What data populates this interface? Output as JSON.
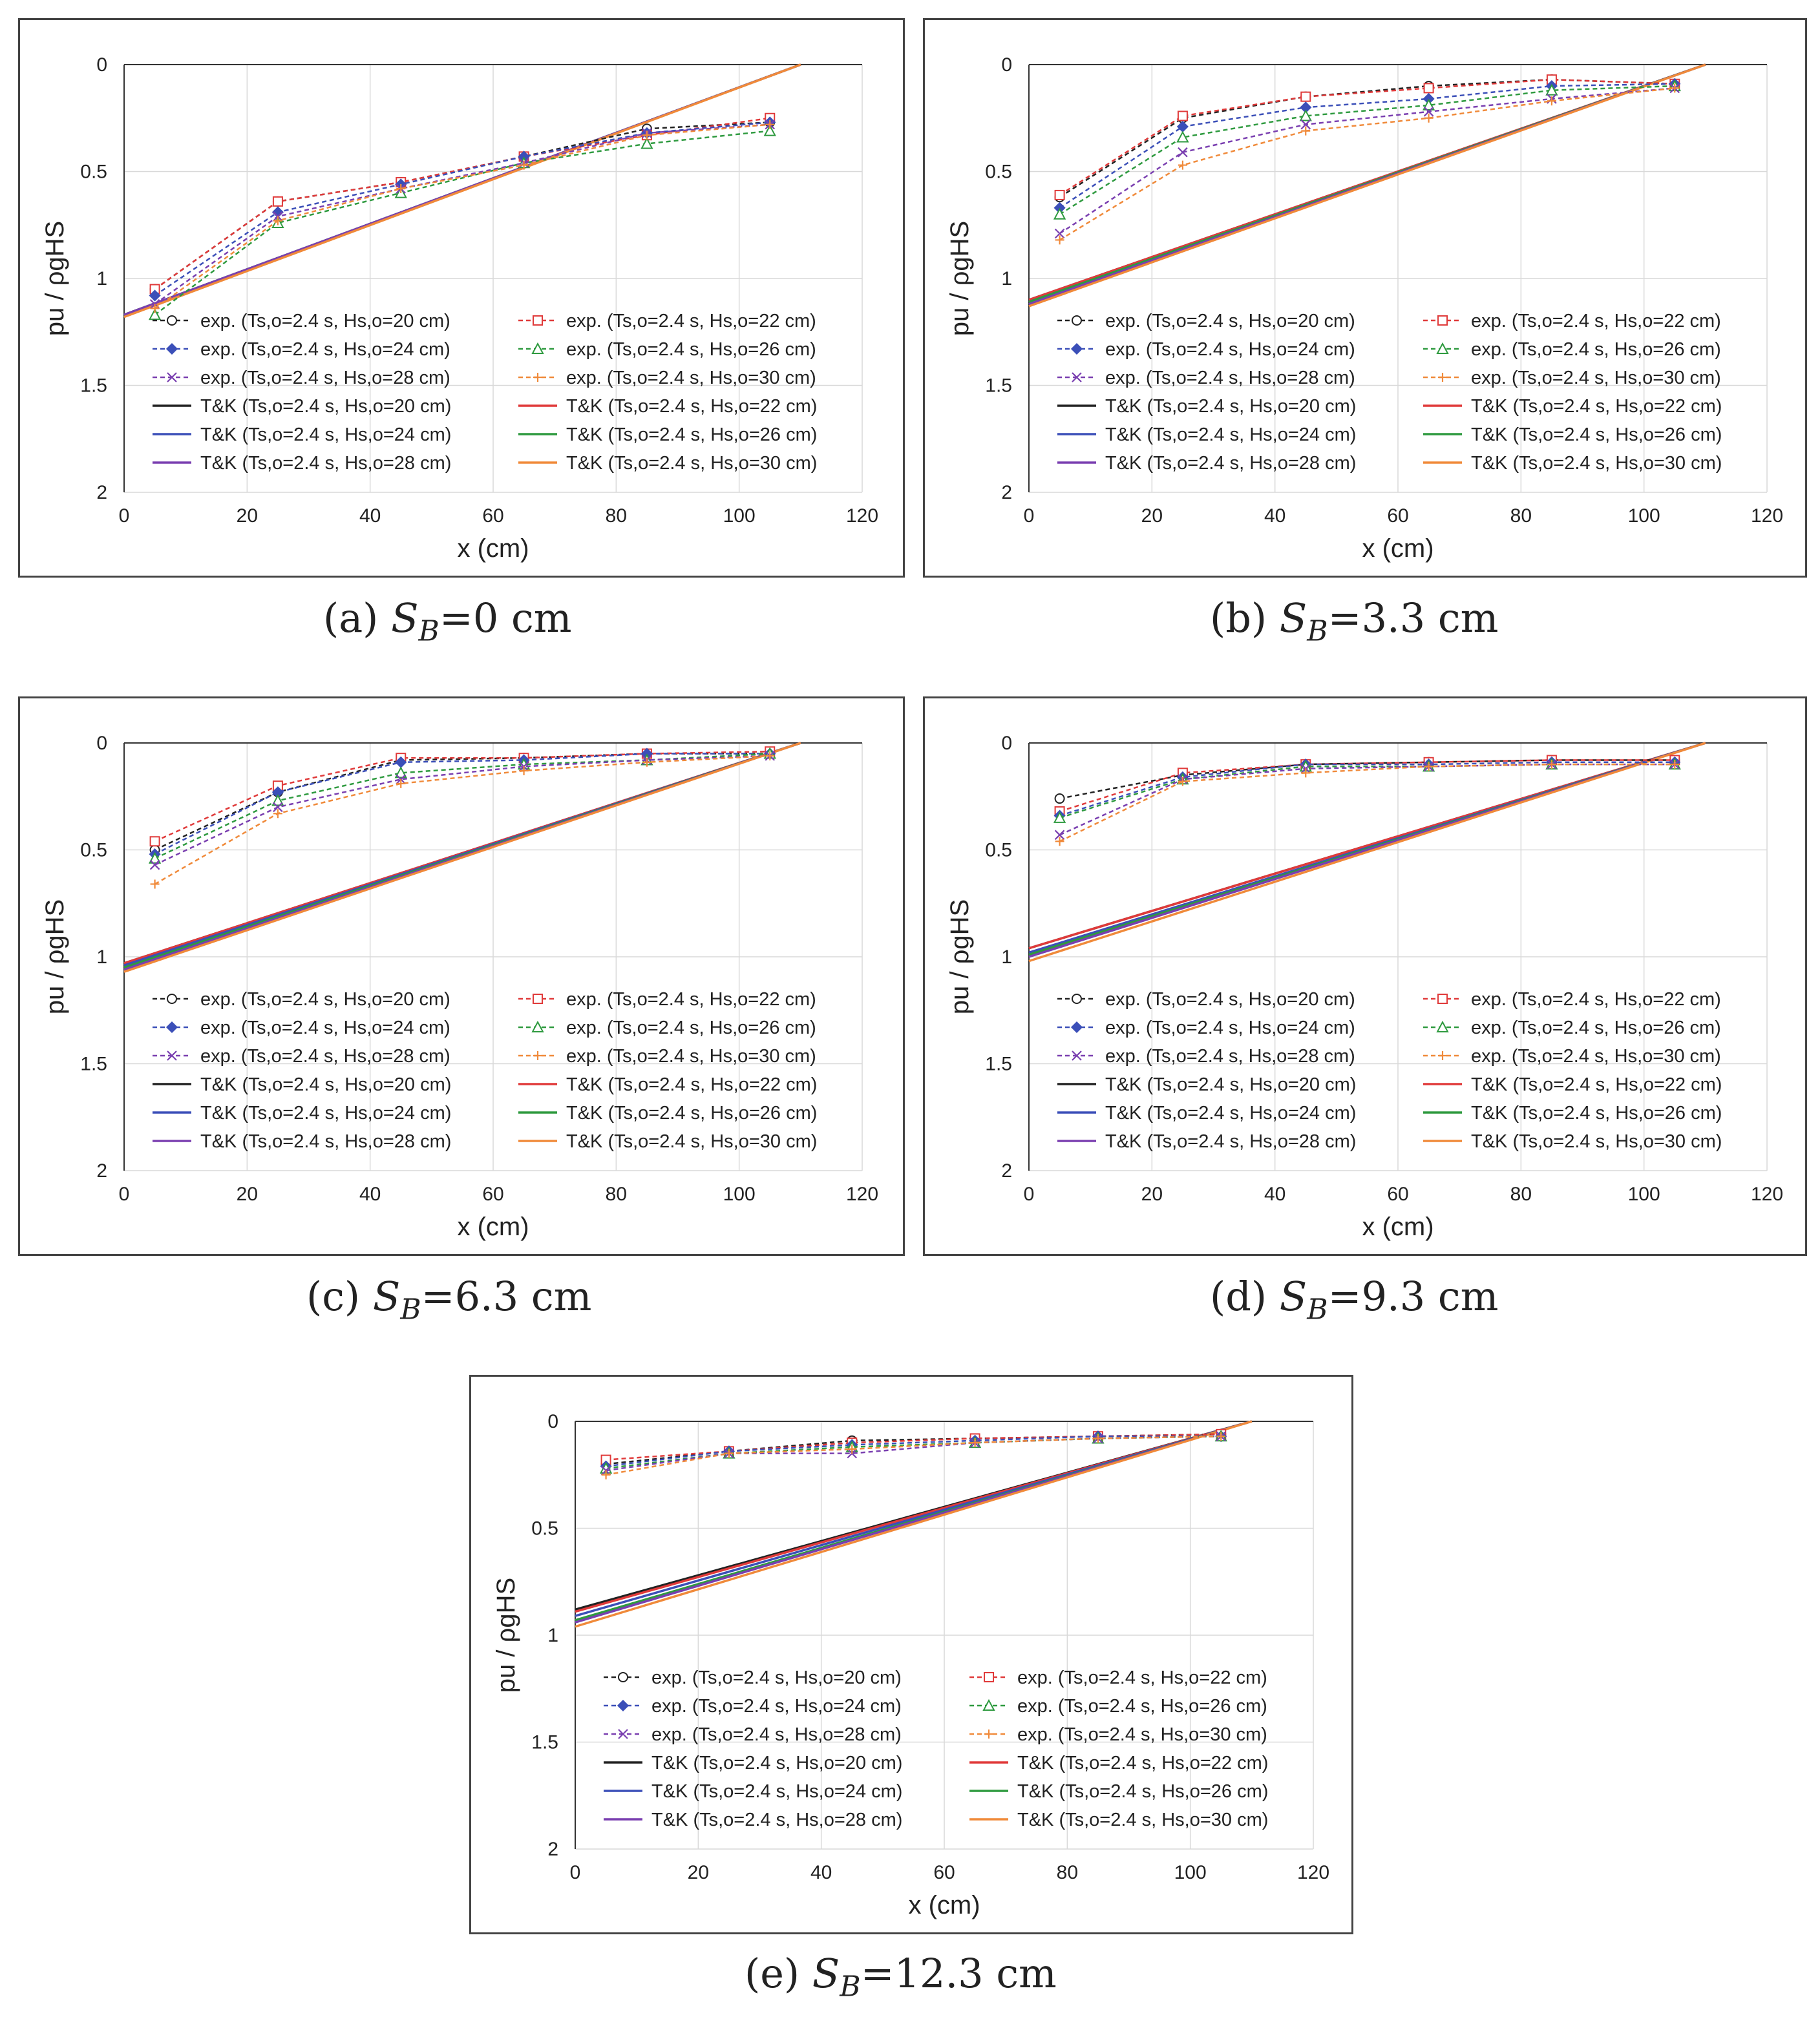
{
  "legend_labels": [
    "exp.  (Ts,o=2.4 s, Hs,o=20 cm)",
    "exp.  (Ts,o=2.4 s, Hs,o=22 cm)",
    "exp.  (Ts,o=2.4 s, Hs,o=24 cm)",
    "exp.  (Ts,o=2.4 s, Hs,o=26 cm)",
    "exp.  (Ts,o=2.4 s, Hs,o=28 cm)",
    "exp.  (Ts,o=2.4 s, Hs,o=30 cm)",
    "T&K  (Ts,o=2.4 s, Hs,o=20 cm)",
    "T&K  (Ts,o=2.4 s, Hs,o=22 cm)",
    "T&K  (Ts,o=2.4 s, Hs,o=24 cm)",
    "T&K  (Ts,o=2.4 s, Hs,o=26 cm)",
    "T&K  (Ts,o=2.4 s, Hs,o=28 cm)",
    "T&K  (Ts,o=2.4 s, Hs,o=30 cm)"
  ],
  "colors": {
    "Hs20": "#222222",
    "Hs22": "#e03a3a",
    "Hs24": "#3b4fb8",
    "Hs26": "#2e9a3f",
    "Hs28": "#7a3fb0",
    "Hs30": "#f08a3a",
    "grid": "#d9d9d9",
    "axis": "#333333"
  },
  "marker_icons": [
    "circle-marker",
    "square-marker",
    "diamond-marker",
    "triangle-marker",
    "cross-marker",
    "plus-marker"
  ],
  "chart_data": [
    {
      "type": "line",
      "caption_prefix": "(a)",
      "caption_value": "=0  cm",
      "xlabel": "x (cm)",
      "ylabel": "pu / ρgHS",
      "xlim": [
        0,
        120
      ],
      "ylim": [
        0,
        2
      ],
      "y_inverted": true,
      "x_ticks": [
        "0",
        "20",
        "40",
        "60",
        "80",
        "100",
        "120"
      ],
      "y_ticks": [
        "0",
        "0.5",
        "1",
        "1.5",
        "2"
      ],
      "legend_position": "lower-left",
      "x": [
        5,
        25,
        45,
        65,
        85,
        105
      ],
      "series": [
        {
          "name": "exp.  (Ts,o=2.4 s, Hs,o=20 cm)",
          "kind": "exp",
          "values": [
            1.05,
            0.64,
            0.55,
            0.43,
            0.3,
            0.27
          ]
        },
        {
          "name": "exp.  (Ts,o=2.4 s, Hs,o=22 cm)",
          "kind": "exp",
          "values": [
            1.05,
            0.64,
            0.55,
            0.43,
            0.33,
            0.25
          ]
        },
        {
          "name": "exp.  (Ts,o=2.4 s, Hs,o=24 cm)",
          "kind": "exp",
          "values": [
            1.08,
            0.69,
            0.56,
            0.43,
            0.32,
            0.27
          ]
        },
        {
          "name": "exp.  (Ts,o=2.4 s, Hs,o=26 cm)",
          "kind": "exp",
          "values": [
            1.17,
            0.74,
            0.6,
            0.46,
            0.37,
            0.31
          ]
        },
        {
          "name": "exp.  (Ts,o=2.4 s, Hs,o=28 cm)",
          "kind": "exp",
          "values": [
            1.12,
            0.71,
            0.58,
            0.46,
            0.32,
            0.28
          ]
        },
        {
          "name": "exp.  (Ts,o=2.4 s, Hs,o=30 cm)",
          "kind": "exp",
          "values": [
            1.14,
            0.73,
            0.58,
            0.47,
            0.33,
            0.28
          ]
        },
        {
          "name": "T&K  (Ts,o=2.4 s, Hs,o=20 cm)",
          "kind": "tk",
          "line": [
            [
              0,
              1.17
            ],
            [
              110,
              0
            ]
          ]
        },
        {
          "name": "T&K  (Ts,o=2.4 s, Hs,o=22 cm)",
          "kind": "tk",
          "line": [
            [
              0,
              1.17
            ],
            [
              110,
              0
            ]
          ]
        },
        {
          "name": "T&K  (Ts,o=2.4 s, Hs,o=24 cm)",
          "kind": "tk",
          "line": [
            [
              0,
              1.17
            ],
            [
              110,
              0
            ]
          ]
        },
        {
          "name": "T&K  (Ts,o=2.4 s, Hs,o=26 cm)",
          "kind": "tk",
          "line": [
            [
              0,
              1.17
            ],
            [
              110,
              0
            ]
          ]
        },
        {
          "name": "T&K  (Ts,o=2.4 s, Hs,o=28 cm)",
          "kind": "tk",
          "line": [
            [
              0,
              1.17
            ],
            [
              110,
              0
            ]
          ]
        },
        {
          "name": "T&K  (Ts,o=2.4 s, Hs,o=30 cm)",
          "kind": "tk",
          "line": [
            [
              0,
              1.18
            ],
            [
              110,
              0
            ]
          ]
        }
      ]
    },
    {
      "type": "line",
      "caption_prefix": "(b)",
      "caption_value": "=3.3  cm",
      "xlabel": "x (cm)",
      "ylabel": "pu / ρgHS",
      "xlim": [
        0,
        120
      ],
      "ylim": [
        0,
        2
      ],
      "y_inverted": true,
      "x_ticks": [
        "0",
        "20",
        "40",
        "60",
        "80",
        "100",
        "120"
      ],
      "y_ticks": [
        "0",
        "0.5",
        "1",
        "1.5",
        "2"
      ],
      "legend_position": "lower-left",
      "x": [
        5,
        25,
        45,
        65,
        85,
        105
      ],
      "series": [
        {
          "name": "exp.  (Ts,o=2.4 s, Hs,o=20 cm)",
          "kind": "exp",
          "values": [
            0.62,
            0.25,
            0.15,
            0.1,
            0.07,
            0.09
          ]
        },
        {
          "name": "exp.  (Ts,o=2.4 s, Hs,o=22 cm)",
          "kind": "exp",
          "values": [
            0.61,
            0.24,
            0.15,
            0.11,
            0.07,
            0.09
          ]
        },
        {
          "name": "exp.  (Ts,o=2.4 s, Hs,o=24 cm)",
          "kind": "exp",
          "values": [
            0.67,
            0.29,
            0.2,
            0.16,
            0.1,
            0.09
          ]
        },
        {
          "name": "exp.  (Ts,o=2.4 s, Hs,o=26 cm)",
          "kind": "exp",
          "values": [
            0.7,
            0.34,
            0.24,
            0.19,
            0.12,
            0.1
          ]
        },
        {
          "name": "exp.  (Ts,o=2.4 s, Hs,o=28 cm)",
          "kind": "exp",
          "values": [
            0.79,
            0.41,
            0.28,
            0.22,
            0.16,
            0.11
          ]
        },
        {
          "name": "exp.  (Ts,o=2.4 s, Hs,o=30 cm)",
          "kind": "exp",
          "values": [
            0.82,
            0.47,
            0.31,
            0.25,
            0.17,
            0.11
          ]
        },
        {
          "name": "T&K  (Ts,o=2.4 s, Hs,o=20 cm)",
          "kind": "tk",
          "line": [
            [
              0,
              1.1
            ],
            [
              110,
              0
            ]
          ]
        },
        {
          "name": "T&K  (Ts,o=2.4 s, Hs,o=22 cm)",
          "kind": "tk",
          "line": [
            [
              0,
              1.1
            ],
            [
              110,
              0
            ]
          ]
        },
        {
          "name": "T&K  (Ts,o=2.4 s, Hs,o=24 cm)",
          "kind": "tk",
          "line": [
            [
              0,
              1.11
            ],
            [
              110,
              0
            ]
          ]
        },
        {
          "name": "T&K  (Ts,o=2.4 s, Hs,o=26 cm)",
          "kind": "tk",
          "line": [
            [
              0,
              1.11
            ],
            [
              110,
              0
            ]
          ]
        },
        {
          "name": "T&K  (Ts,o=2.4 s, Hs,o=28 cm)",
          "kind": "tk",
          "line": [
            [
              0,
              1.12
            ],
            [
              110,
              0
            ]
          ]
        },
        {
          "name": "T&K  (Ts,o=2.4 s, Hs,o=30 cm)",
          "kind": "tk",
          "line": [
            [
              0,
              1.13
            ],
            [
              110,
              0
            ]
          ]
        }
      ]
    },
    {
      "type": "line",
      "caption_prefix": "(c)",
      "caption_value": "=6.3  cm",
      "xlabel": "x (cm)",
      "ylabel": "pu / ρgHS",
      "xlim": [
        0,
        120
      ],
      "ylim": [
        0,
        2
      ],
      "y_inverted": true,
      "x_ticks": [
        "0",
        "20",
        "40",
        "60",
        "80",
        "100",
        "120"
      ],
      "y_ticks": [
        "0",
        "0.5",
        "1",
        "1.5",
        "2"
      ],
      "legend_position": "lower-left",
      "x": [
        5,
        25,
        45,
        65,
        85,
        105
      ],
      "series": [
        {
          "name": "exp.  (Ts,o=2.4 s, Hs,o=20 cm)",
          "kind": "exp",
          "values": [
            0.5,
            0.23,
            0.08,
            0.07,
            0.05,
            0.05
          ]
        },
        {
          "name": "exp.  (Ts,o=2.4 s, Hs,o=22 cm)",
          "kind": "exp",
          "values": [
            0.46,
            0.2,
            0.07,
            0.07,
            0.05,
            0.04
          ]
        },
        {
          "name": "exp.  (Ts,o=2.4 s, Hs,o=24 cm)",
          "kind": "exp",
          "values": [
            0.52,
            0.23,
            0.09,
            0.08,
            0.05,
            0.05
          ]
        },
        {
          "name": "exp.  (Ts,o=2.4 s, Hs,o=26 cm)",
          "kind": "exp",
          "values": [
            0.54,
            0.27,
            0.14,
            0.1,
            0.08,
            0.05
          ]
        },
        {
          "name": "exp.  (Ts,o=2.4 s, Hs,o=28 cm)",
          "kind": "exp",
          "values": [
            0.57,
            0.3,
            0.17,
            0.11,
            0.08,
            0.06
          ]
        },
        {
          "name": "exp.  (Ts,o=2.4 s, Hs,o=30 cm)",
          "kind": "exp",
          "values": [
            0.66,
            0.33,
            0.19,
            0.13,
            0.09,
            0.06
          ]
        },
        {
          "name": "T&K  (Ts,o=2.4 s, Hs,o=20 cm)",
          "kind": "tk",
          "line": [
            [
              0,
              1.03
            ],
            [
              110,
              0
            ]
          ]
        },
        {
          "name": "T&K  (Ts,o=2.4 s, Hs,o=22 cm)",
          "kind": "tk",
          "line": [
            [
              0,
              1.03
            ],
            [
              110,
              0
            ]
          ]
        },
        {
          "name": "T&K  (Ts,o=2.4 s, Hs,o=24 cm)",
          "kind": "tk",
          "line": [
            [
              0,
              1.04
            ],
            [
              110,
              0
            ]
          ]
        },
        {
          "name": "T&K  (Ts,o=2.4 s, Hs,o=26 cm)",
          "kind": "tk",
          "line": [
            [
              0,
              1.05
            ],
            [
              110,
              0
            ]
          ]
        },
        {
          "name": "T&K (Ts,o=2.4 s, Hs,o=28 cm)",
          "kind": "tk",
          "line": [
            [
              0,
              1.06
            ],
            [
              110,
              0
            ]
          ]
        },
        {
          "name": "T&K  (Ts,o=2.4 s, Hs,o=30 cm)",
          "kind": "tk",
          "line": [
            [
              0,
              1.07
            ],
            [
              110,
              0
            ]
          ]
        }
      ]
    },
    {
      "type": "line",
      "caption_prefix": "(d)",
      "caption_value": "=9.3  cm",
      "xlabel": "x (cm)",
      "ylabel": "pu / ρgHS",
      "xlim": [
        0,
        120
      ],
      "ylim": [
        0,
        2
      ],
      "y_inverted": true,
      "x_ticks": [
        "0",
        "20",
        "40",
        "60",
        "80",
        "100",
        "120"
      ],
      "y_ticks": [
        "0",
        "0.5",
        "1",
        "1.5",
        "2"
      ],
      "legend_position": "lower-left",
      "x": [
        5,
        25,
        45,
        65,
        85,
        105
      ],
      "series": [
        {
          "name": "exp.  (Ts,o=2.4 s, Hs,o=20 cm)",
          "kind": "exp",
          "values": [
            0.26,
            0.15,
            0.1,
            0.09,
            0.08,
            0.08
          ]
        },
        {
          "name": "exp.  (Ts,o=2.4 s, Hs,o=22 cm)",
          "kind": "exp",
          "values": [
            0.32,
            0.14,
            0.1,
            0.09,
            0.08,
            0.08
          ]
        },
        {
          "name": "exp.  (Ts,o=2.4 s, Hs,o=24 cm)",
          "kind": "exp",
          "values": [
            0.34,
            0.16,
            0.1,
            0.1,
            0.09,
            0.09
          ]
        },
        {
          "name": "exp.  (Ts,o=2.4 s, Hs,o=26 cm)",
          "kind": "exp",
          "values": [
            0.35,
            0.17,
            0.11,
            0.11,
            0.1,
            0.1
          ]
        },
        {
          "name": "exp.  (Ts,o=2.4 s, Hs,o=28 cm)",
          "kind": "exp",
          "values": [
            0.43,
            0.17,
            0.12,
            0.11,
            0.1,
            0.1
          ]
        },
        {
          "name": "exp.  (Ts,o=2.4 s, Hs,o=30 cm)",
          "kind": "exp",
          "values": [
            0.46,
            0.18,
            0.14,
            0.11,
            0.1,
            0.1
          ]
        },
        {
          "name": "T&K  (Ts,o=2.4 s, Hs,o=20 cm)",
          "kind": "tk",
          "line": [
            [
              0,
              0.96
            ],
            [
              110,
              0
            ]
          ]
        },
        {
          "name": "T&K  (Ts,o=2.4 s, Hs,o=22 cm)",
          "kind": "tk",
          "line": [
            [
              0,
              0.96
            ],
            [
              110,
              0
            ]
          ]
        },
        {
          "name": "T&K  (Ts,o=2.4 s, Hs,o=24 cm)",
          "kind": "tk",
          "line": [
            [
              0,
              0.98
            ],
            [
              110,
              0
            ]
          ]
        },
        {
          "name": "T&K  (Ts,o=2.4 s, Hs,o=26 cm)",
          "kind": "tk",
          "line": [
            [
              0,
              0.99
            ],
            [
              110,
              0
            ]
          ]
        },
        {
          "name": "T&K  (Ts,o=2.4 s, Hs,o=28 cm)",
          "kind": "tk",
          "line": [
            [
              0,
              1.0
            ],
            [
              110,
              0
            ]
          ]
        },
        {
          "name": "T&K  (Ts,o=2.4 s, Hs,o=30 cm)",
          "kind": "tk",
          "line": [
            [
              0,
              1.02
            ],
            [
              110,
              0
            ]
          ]
        }
      ]
    },
    {
      "type": "line",
      "caption_prefix": "(e)",
      "caption_value": "=12.3  cm",
      "xlabel": "x (cm)",
      "ylabel": "pu / ρgHS",
      "xlim": [
        0,
        120
      ],
      "ylim": [
        0,
        2
      ],
      "y_inverted": true,
      "x_ticks": [
        "0",
        "20",
        "40",
        "60",
        "80",
        "100",
        "120"
      ],
      "y_ticks": [
        "0",
        "0.5",
        "1",
        "1.5",
        "2"
      ],
      "legend_position": "lower-left",
      "x": [
        5,
        25,
        45,
        65,
        85,
        105
      ],
      "series": [
        {
          "name": "exp.  (Ts,o=2.4 s, Hs,o=20 cm)",
          "kind": "exp",
          "values": [
            0.2,
            0.14,
            0.09,
            0.08,
            0.07,
            0.06
          ]
        },
        {
          "name": "exp.  (Ts,o=2.4 s, Hs,o=22 cm)",
          "kind": "exp",
          "values": [
            0.18,
            0.14,
            0.1,
            0.08,
            0.07,
            0.06
          ]
        },
        {
          "name": "exp.  (Ts,o=2.4 s, Hs,o=24 cm)",
          "kind": "exp",
          "values": [
            0.21,
            0.14,
            0.11,
            0.09,
            0.07,
            0.07
          ]
        },
        {
          "name": "exp.  (Ts,o=2.4 s, Hs,o=26 cm)",
          "kind": "exp",
          "values": [
            0.22,
            0.15,
            0.12,
            0.1,
            0.08,
            0.07
          ]
        },
        {
          "name": "exp.  (Ts,o=2.4 s, Hs,o=28 cm)",
          "kind": "exp",
          "values": [
            0.23,
            0.15,
            0.15,
            0.1,
            0.08,
            0.07
          ]
        },
        {
          "name": "exp.  (Ts,o=2.4 s, Hs,o=30 cm)",
          "kind": "exp",
          "values": [
            0.25,
            0.15,
            0.13,
            0.1,
            0.08,
            0.07
          ]
        },
        {
          "name": "T&K  (Ts,o=2.4 s, Hs,o=20 cm)",
          "kind": "tk",
          "line": [
            [
              0,
              0.88
            ],
            [
              110,
              0
            ]
          ]
        },
        {
          "name": "T&K  (Ts,o=2.4 s, Hs,o=22 cm)",
          "kind": "tk",
          "line": [
            [
              0,
              0.89
            ],
            [
              110,
              0
            ]
          ]
        },
        {
          "name": "T&K  (Ts,o=2.4 s, Hs,o=24 cm)",
          "kind": "tk",
          "line": [
            [
              0,
              0.91
            ],
            [
              110,
              0
            ]
          ]
        },
        {
          "name": "T&K  (Ts,o=2.4 s, Hs,o=26 cm)",
          "kind": "tk",
          "line": [
            [
              0,
              0.93
            ],
            [
              110,
              0
            ]
          ]
        },
        {
          "name": "T&K  (Ts,o=2.4 s, Hs,o=28 cm)",
          "kind": "tk",
          "line": [
            [
              0,
              0.94
            ],
            [
              110,
              0
            ]
          ]
        },
        {
          "name": "T&K  (Ts,o=2.4 s, Hs,o=30 cm)",
          "kind": "tk",
          "line": [
            [
              0,
              0.96
            ],
            [
              110,
              0
            ]
          ]
        }
      ]
    }
  ]
}
